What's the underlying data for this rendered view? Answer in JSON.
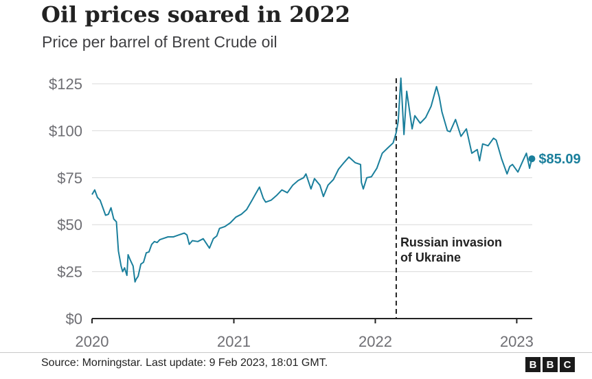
{
  "header": {
    "title": "Oil prices soared in 2022",
    "subtitle": "Price per barrel of Brent Crude oil"
  },
  "footer": {
    "source": "Source: Morningstar. Last update: 9 Feb 2023, 18:01 GMT.",
    "logo_letters": [
      "B",
      "B",
      "C"
    ]
  },
  "colors": {
    "line": "#1a7f9c",
    "grid": "#d9d9d9",
    "axis": "#222222",
    "tick_text": "#6e6e73",
    "annotation": "#222222"
  },
  "chart_data": {
    "type": "line",
    "title": "Oil prices soared in 2022",
    "subtitle": "Price per barrel of Brent Crude oil",
    "xlabel": "",
    "ylabel": "",
    "xlim": [
      "2020-01-01",
      "2023-02-10"
    ],
    "ylim": [
      0,
      125
    ],
    "x_tick_labels": [
      {
        "date": "2020-01-01",
        "label": "2020"
      },
      {
        "date": "2021-01-01",
        "label": "2021"
      },
      {
        "date": "2022-01-01",
        "label": "2022"
      },
      {
        "date": "2023-01-01",
        "label": "2023"
      }
    ],
    "y_tick_labels": [
      {
        "value": 0,
        "label": "$0"
      },
      {
        "value": 25,
        "label": "$25"
      },
      {
        "value": 50,
        "label": "$50"
      },
      {
        "value": 75,
        "label": "$75"
      },
      {
        "value": 100,
        "label": "$100"
      },
      {
        "value": 125,
        "label": "$125"
      }
    ],
    "grid": true,
    "end_label": "$85.09",
    "annotation": {
      "date": "2022-02-24",
      "lines": [
        "Russian invasion",
        "of Ukraine"
      ]
    },
    "series": [
      {
        "points": [
          [
            "2020-01-01",
            66
          ],
          [
            "2020-01-08",
            68.5
          ],
          [
            "2020-01-15",
            64.5
          ],
          [
            "2020-01-22",
            63
          ],
          [
            "2020-01-29",
            59
          ],
          [
            "2020-02-05",
            55
          ],
          [
            "2020-02-12",
            55.5
          ],
          [
            "2020-02-19",
            59
          ],
          [
            "2020-02-26",
            53
          ],
          [
            "2020-03-04",
            51.5
          ],
          [
            "2020-03-09",
            36
          ],
          [
            "2020-03-16",
            28
          ],
          [
            "2020-03-20",
            25
          ],
          [
            "2020-03-25",
            27
          ],
          [
            "2020-03-31",
            23
          ],
          [
            "2020-04-03",
            34
          ],
          [
            "2020-04-09",
            31
          ],
          [
            "2020-04-16",
            28
          ],
          [
            "2020-04-21",
            19.5
          ],
          [
            "2020-04-24",
            21
          ],
          [
            "2020-04-29",
            22.5
          ],
          [
            "2020-05-06",
            29
          ],
          [
            "2020-05-13",
            30
          ],
          [
            "2020-05-20",
            35
          ],
          [
            "2020-05-27",
            35.5
          ],
          [
            "2020-06-03",
            39.5
          ],
          [
            "2020-06-10",
            41
          ],
          [
            "2020-06-17",
            40.5
          ],
          [
            "2020-06-24",
            42
          ],
          [
            "2020-07-01",
            42.5
          ],
          [
            "2020-07-15",
            43.5
          ],
          [
            "2020-07-29",
            43.5
          ],
          [
            "2020-08-12",
            44.5
          ],
          [
            "2020-08-26",
            45.5
          ],
          [
            "2020-09-02",
            44.5
          ],
          [
            "2020-09-08",
            39.5
          ],
          [
            "2020-09-16",
            41.5
          ],
          [
            "2020-09-30",
            41
          ],
          [
            "2020-10-14",
            42.5
          ],
          [
            "2020-10-30",
            37.5
          ],
          [
            "2020-11-09",
            42.5
          ],
          [
            "2020-11-18",
            44
          ],
          [
            "2020-11-25",
            48
          ],
          [
            "2020-12-09",
            49
          ],
          [
            "2020-12-23",
            51
          ],
          [
            "2021-01-06",
            54
          ],
          [
            "2021-01-20",
            55.5
          ],
          [
            "2021-02-03",
            58
          ],
          [
            "2021-02-17",
            63
          ],
          [
            "2021-02-25",
            66
          ],
          [
            "2021-03-08",
            70
          ],
          [
            "2021-03-18",
            64
          ],
          [
            "2021-03-24",
            62
          ],
          [
            "2021-04-07",
            63
          ],
          [
            "2021-04-21",
            65.5
          ],
          [
            "2021-05-05",
            68.5
          ],
          [
            "2021-05-19",
            67
          ],
          [
            "2021-06-02",
            71
          ],
          [
            "2021-06-16",
            73.5
          ],
          [
            "2021-06-30",
            75
          ],
          [
            "2021-07-06",
            77
          ],
          [
            "2021-07-19",
            69
          ],
          [
            "2021-07-28",
            74.5
          ],
          [
            "2021-08-11",
            71
          ],
          [
            "2021-08-20",
            65
          ],
          [
            "2021-09-01",
            71
          ],
          [
            "2021-09-15",
            74
          ],
          [
            "2021-09-28",
            79.5
          ],
          [
            "2021-10-12",
            83
          ],
          [
            "2021-10-25",
            86
          ],
          [
            "2021-11-10",
            83
          ],
          [
            "2021-11-24",
            82
          ],
          [
            "2021-11-26",
            72.5
          ],
          [
            "2021-12-01",
            69
          ],
          [
            "2021-12-10",
            75
          ],
          [
            "2021-12-22",
            75.5
          ],
          [
            "2022-01-05",
            80
          ],
          [
            "2022-01-19",
            88
          ],
          [
            "2022-02-03",
            91
          ],
          [
            "2022-02-16",
            93.5
          ],
          [
            "2022-02-24",
            99
          ],
          [
            "2022-03-01",
            105
          ],
          [
            "2022-03-08",
            128
          ],
          [
            "2022-03-16",
            98
          ],
          [
            "2022-03-23",
            121
          ],
          [
            "2022-04-06",
            101
          ],
          [
            "2022-04-13",
            108
          ],
          [
            "2022-04-27",
            104
          ],
          [
            "2022-05-11",
            107
          ],
          [
            "2022-05-25",
            113
          ],
          [
            "2022-06-08",
            123.5
          ],
          [
            "2022-06-15",
            118
          ],
          [
            "2022-06-22",
            110
          ],
          [
            "2022-07-06",
            100
          ],
          [
            "2022-07-13",
            99.5
          ],
          [
            "2022-07-27",
            106
          ],
          [
            "2022-08-10",
            97
          ],
          [
            "2022-08-24",
            101
          ],
          [
            "2022-09-07",
            88
          ],
          [
            "2022-09-21",
            90
          ],
          [
            "2022-09-27",
            84
          ],
          [
            "2022-10-05",
            93
          ],
          [
            "2022-10-19",
            92
          ],
          [
            "2022-11-02",
            96
          ],
          [
            "2022-11-09",
            95
          ],
          [
            "2022-11-23",
            85
          ],
          [
            "2022-12-07",
            77
          ],
          [
            "2022-12-14",
            81
          ],
          [
            "2022-12-21",
            82
          ],
          [
            "2023-01-04",
            78
          ],
          [
            "2023-01-18",
            84.5
          ],
          [
            "2023-01-26",
            88
          ],
          [
            "2023-02-03",
            80
          ],
          [
            "2023-02-09",
            85.09
          ]
        ]
      }
    ]
  }
}
